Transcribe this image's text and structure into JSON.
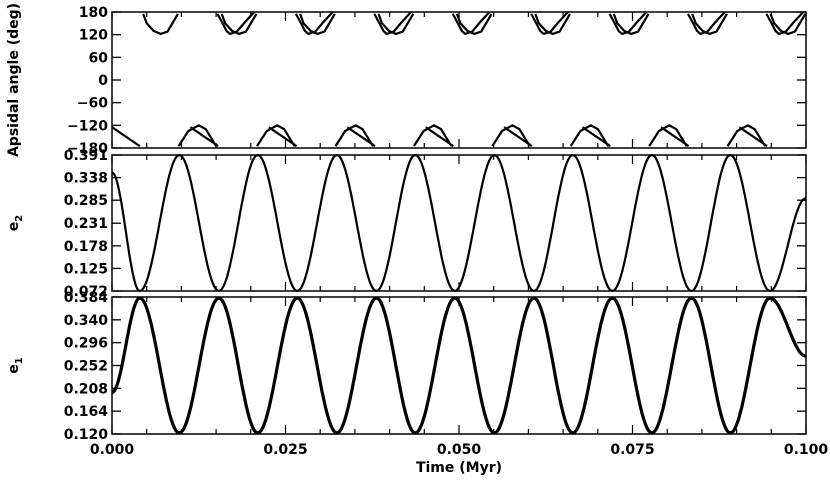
{
  "chart_data": [
    {
      "type": "line",
      "ylabel": "Apsidal angle (deg)",
      "xlim": [
        0.0,
        0.1
      ],
      "ylim": [
        -180,
        180
      ],
      "yticks": [
        -180,
        -120,
        -60,
        0,
        60,
        120,
        180
      ],
      "ytick_labels": [
        "−180",
        "−120",
        "−60",
        "0",
        "60",
        "120",
        "180"
      ],
      "series": [
        {
          "x": [
            0.0,
            0.004,
            0.0045,
            0.005,
            0.006,
            0.007,
            0.008,
            0.0095,
            0.0096,
            0.011,
            0.0125,
            0.0135,
            0.015,
            0.0152,
            0.016,
            0.0165,
            0.017,
            0.018,
            0.019,
            0.0205,
            0.021
          ],
          "y": [
            -125,
            -175,
            175,
            150,
            130,
            122,
            128,
            175,
            -175,
            -135,
            -120,
            -130,
            -175,
            175,
            148,
            130,
            122,
            128,
            150,
            180,
            -178
          ]
        }
      ],
      "note_period_myr": 0.0113
    },
    {
      "type": "line",
      "ylabel": "e2",
      "xlim": [
        0.0,
        0.1
      ],
      "ylim": [
        0.072,
        0.391
      ],
      "yticks": [
        0.072,
        0.125,
        0.178,
        0.231,
        0.285,
        0.338,
        0.391
      ],
      "ytick_labels": [
        "0.072",
        "0.125",
        "0.178",
        "0.231",
        "0.285",
        "0.338",
        "0.391"
      ],
      "series": [
        {
          "x": [
            0.0,
            0.004,
            0.0097,
            0.0154,
            0.021,
            0.0267,
            0.0324,
            0.0381,
            0.0437,
            0.0494,
            0.0551,
            0.0608,
            0.0664,
            0.0721,
            0.0778,
            0.0835,
            0.0891,
            0.0948,
            0.1
          ],
          "y": [
            0.35,
            0.072,
            0.391,
            0.072,
            0.391,
            0.072,
            0.391,
            0.072,
            0.391,
            0.072,
            0.391,
            0.072,
            0.391,
            0.072,
            0.391,
            0.072,
            0.391,
            0.072,
            0.29
          ]
        }
      ]
    },
    {
      "type": "line",
      "ylabel": "e1",
      "xlabel": "Time (Myr)",
      "xlim": [
        0.0,
        0.1
      ],
      "ylim": [
        0.12,
        0.384
      ],
      "xticks": [
        0.0,
        0.025,
        0.05,
        0.075,
        0.1
      ],
      "xtick_labels": [
        "0.000",
        "0.025",
        "0.050",
        "0.075",
        "0.100"
      ],
      "yticks": [
        0.12,
        0.164,
        0.208,
        0.252,
        0.296,
        0.34,
        0.384
      ],
      "ytick_labels": [
        "0.120",
        "0.164",
        "0.208",
        "0.252",
        "0.296",
        "0.340",
        "0.384"
      ],
      "series": [
        {
          "x": [
            0.0,
            0.004,
            0.0097,
            0.0154,
            0.021,
            0.0267,
            0.0324,
            0.0381,
            0.0437,
            0.0494,
            0.0551,
            0.0608,
            0.0664,
            0.0721,
            0.0778,
            0.0835,
            0.0891,
            0.0948,
            0.1
          ],
          "y": [
            0.2,
            0.382,
            0.122,
            0.382,
            0.122,
            0.382,
            0.122,
            0.382,
            0.122,
            0.382,
            0.122,
            0.382,
            0.122,
            0.382,
            0.122,
            0.382,
            0.122,
            0.382,
            0.27
          ]
        }
      ]
    }
  ]
}
